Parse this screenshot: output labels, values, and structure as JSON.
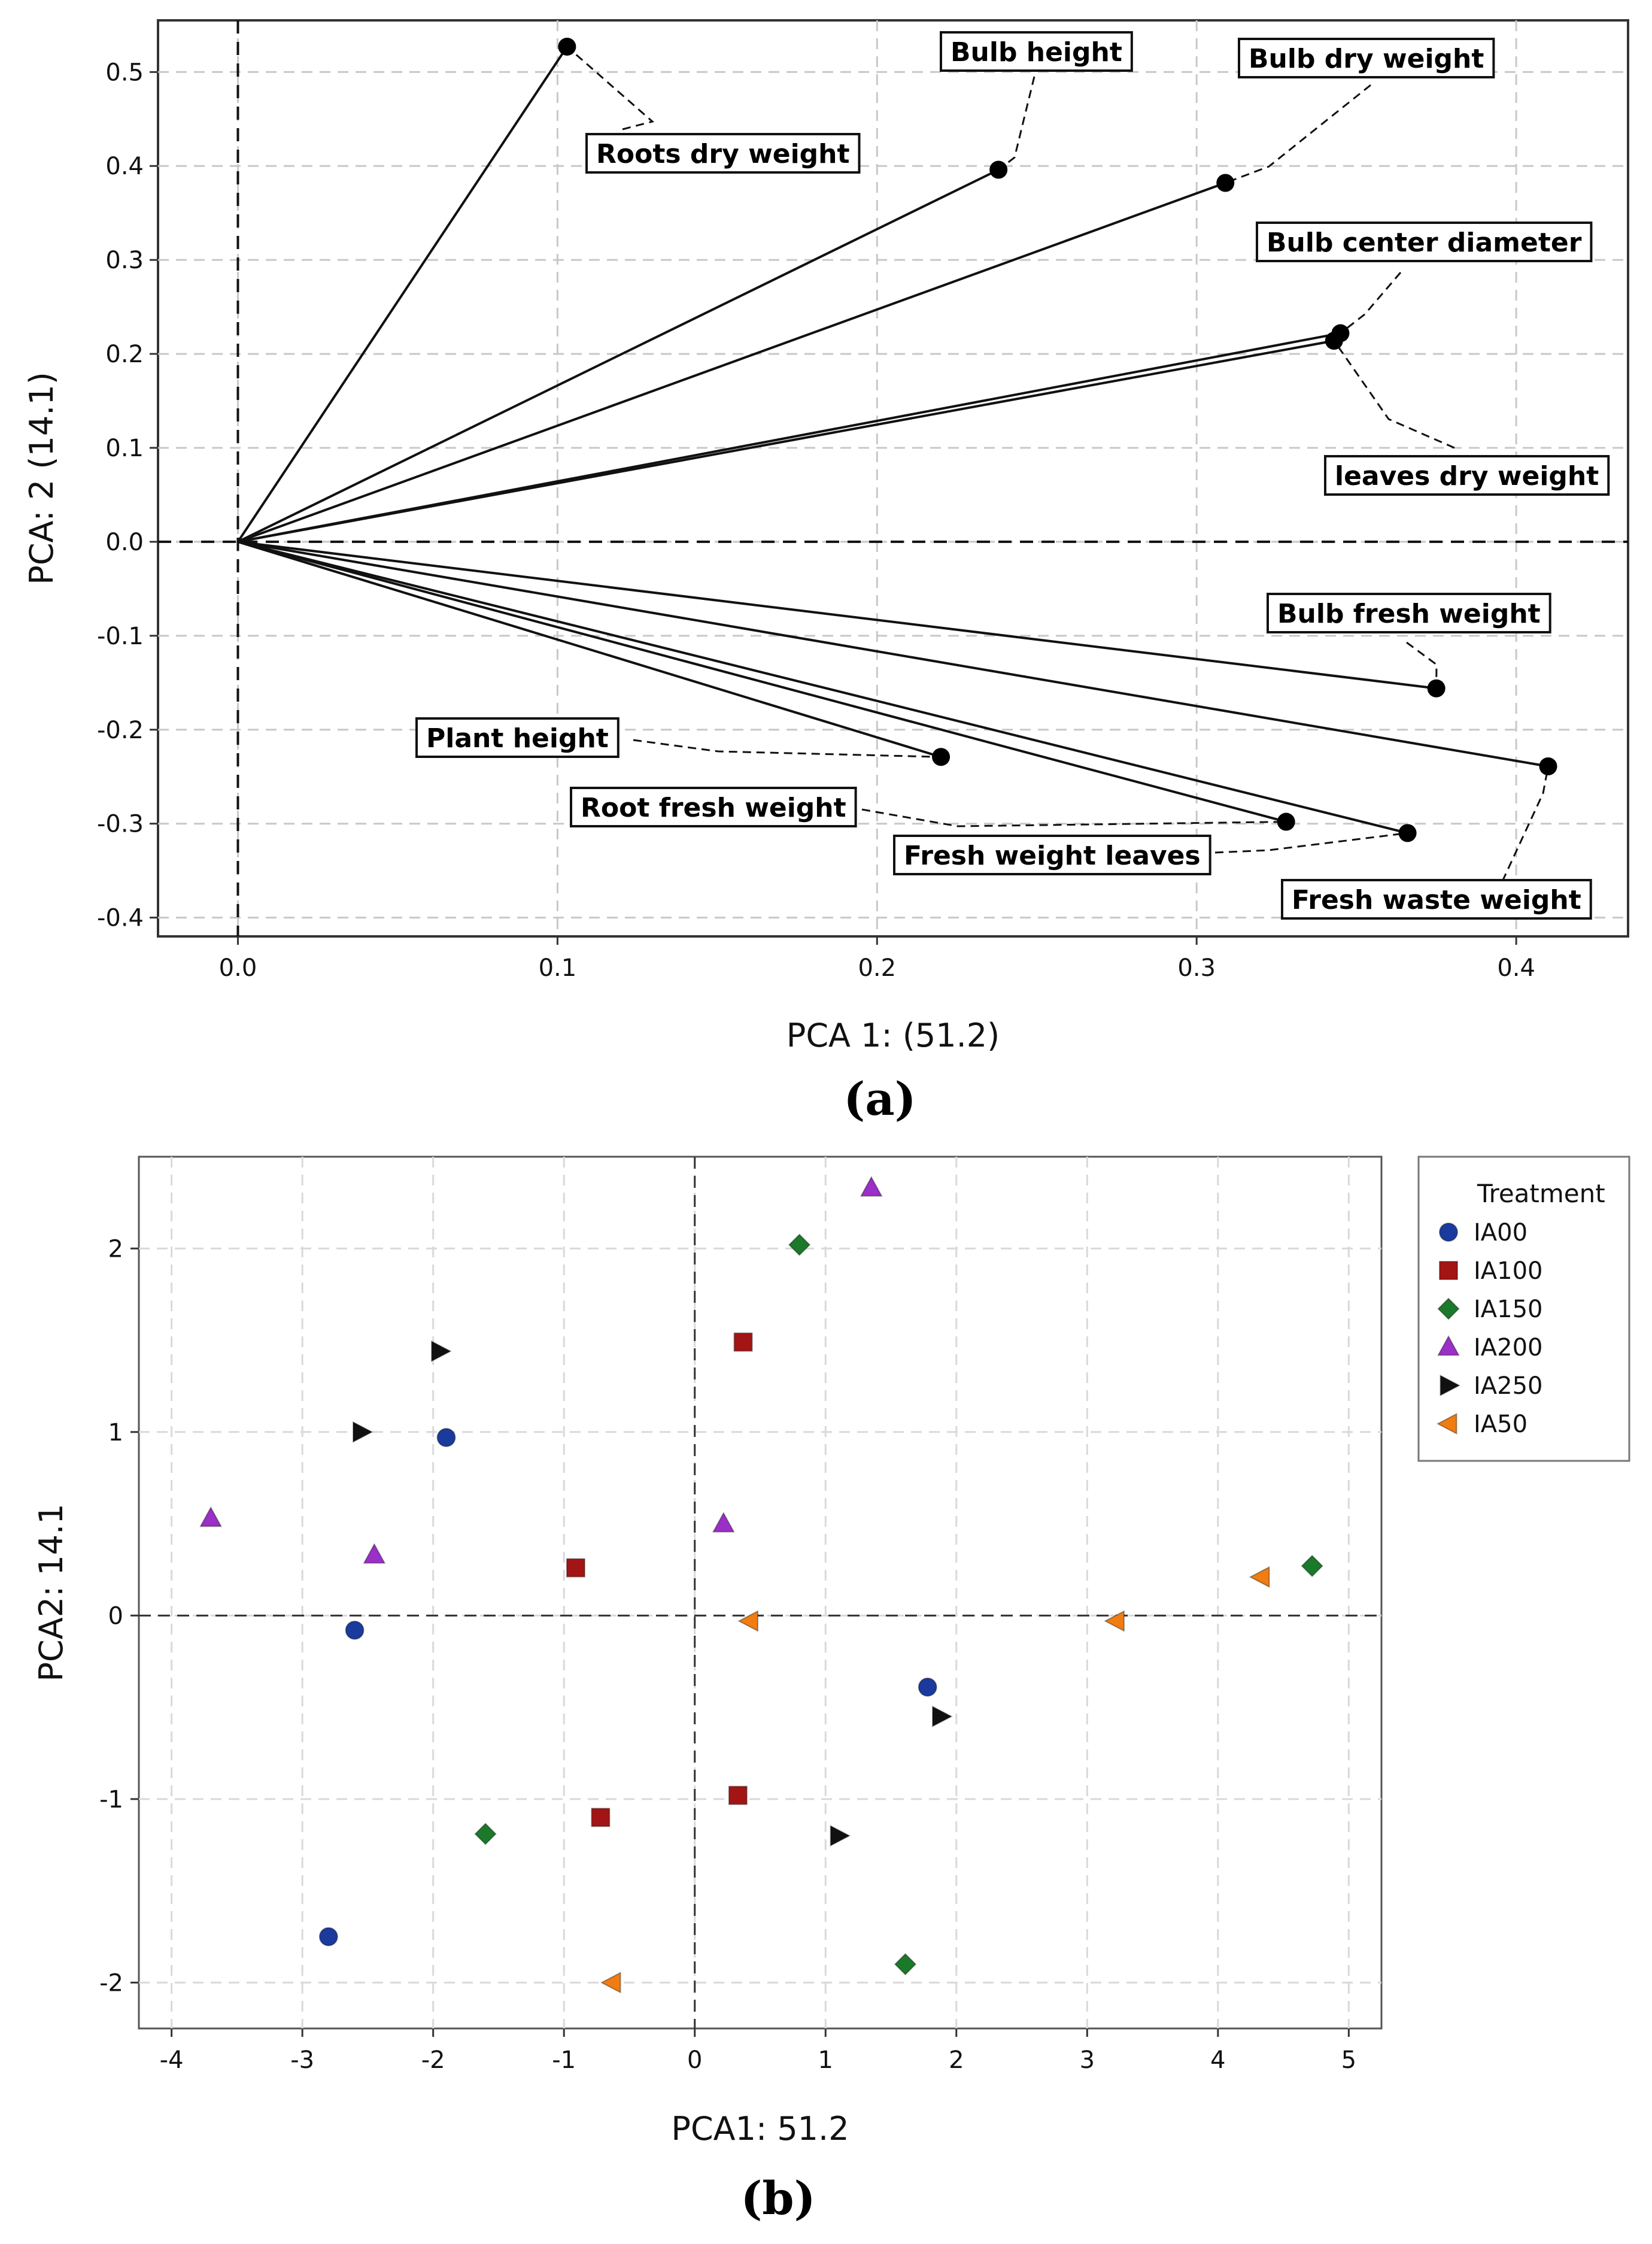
{
  "chart_data": [
    {
      "type": "scatter",
      "subtype": "biplot-loadings",
      "panel_label": "(a)",
      "xlabel": "PCA 1: (51.2)",
      "ylabel": "PCA: 2 (14.1)",
      "xlim": [
        -0.025,
        0.435
      ],
      "ylim": [
        -0.42,
        0.555
      ],
      "xticks": [
        "0.0",
        "0.1",
        "0.2",
        "0.3",
        "0.4"
      ],
      "yticks": [
        "0.5",
        "0.4",
        "0.3",
        "0.2",
        "0.1",
        "0.0",
        "-0.1",
        "-0.2",
        "-0.3",
        "-0.4"
      ],
      "grid": true,
      "origin": [
        0,
        0
      ],
      "vectors": [
        {
          "label": "Roots dry weight",
          "x": 0.103,
          "y": 0.527
        },
        {
          "label": "Bulb height",
          "x": 0.238,
          "y": 0.396
        },
        {
          "label": "Bulb dry weight",
          "x": 0.309,
          "y": 0.382
        },
        {
          "label": "Bulb center diameter",
          "x": 0.345,
          "y": 0.222
        },
        {
          "label": "leaves dry weight",
          "x": 0.343,
          "y": 0.214
        },
        {
          "label": "Bulb fresh weight",
          "x": 0.375,
          "y": -0.156
        },
        {
          "label": "Fresh waste weight",
          "x": 0.41,
          "y": -0.239
        },
        {
          "label": "Plant height",
          "x": 0.22,
          "y": -0.229
        },
        {
          "label": "Root fresh weight",
          "x": 0.328,
          "y": -0.298
        },
        {
          "label": "Fresh weight leaves",
          "x": 0.366,
          "y": -0.31
        }
      ]
    },
    {
      "type": "scatter",
      "panel_label": "(b)",
      "xlabel": "PCA1: 51.2",
      "ylabel": "PCA2: 14.1",
      "xlim": [
        -4.25,
        5.25
      ],
      "ylim": [
        -2.25,
        2.5
      ],
      "xticks": [
        "-4",
        "-3",
        "-2",
        "-1",
        "0",
        "1",
        "2",
        "3",
        "4",
        "5"
      ],
      "yticks": [
        "2",
        "1",
        "0",
        "-1",
        "-2"
      ],
      "grid": true,
      "legend_title": "Treatment",
      "legend_position": "right",
      "series": [
        {
          "name": "IA00",
          "marker": "circle",
          "color": "#1a3a9e",
          "points": [
            [
              -1.9,
              0.97
            ],
            [
              -2.6,
              -0.08
            ],
            [
              -2.8,
              -1.75
            ],
            [
              1.78,
              -0.39
            ]
          ]
        },
        {
          "name": "IA100",
          "marker": "square",
          "color": "#a31515",
          "points": [
            [
              0.37,
              1.49
            ],
            [
              -0.91,
              0.26
            ],
            [
              -0.72,
              -1.1
            ],
            [
              0.33,
              -0.98
            ]
          ]
        },
        {
          "name": "IA150",
          "marker": "diamond",
          "color": "#1a7a2a",
          "points": [
            [
              0.8,
              2.02
            ],
            [
              4.72,
              0.27
            ],
            [
              -1.6,
              -1.19
            ],
            [
              1.61,
              -1.9
            ]
          ]
        },
        {
          "name": "IA200",
          "marker": "triangle-up",
          "color": "#9b2fc7",
          "points": [
            [
              1.35,
              2.33
            ],
            [
              -3.7,
              0.53
            ],
            [
              -2.45,
              0.33
            ],
            [
              0.22,
              0.5
            ]
          ]
        },
        {
          "name": "IA250",
          "marker": "triangle-right",
          "color": "#111111",
          "points": [
            [
              -1.95,
              1.44
            ],
            [
              -2.55,
              1.0
            ],
            [
              1.88,
              -0.55
            ],
            [
              1.1,
              -1.2
            ]
          ]
        },
        {
          "name": "IA50",
          "marker": "triangle-left",
          "color": "#f07c12",
          "points": [
            [
              0.42,
              -0.03
            ],
            [
              3.22,
              -0.03
            ],
            [
              4.33,
              0.21
            ],
            [
              -0.63,
              -2.0
            ]
          ]
        }
      ]
    }
  ]
}
